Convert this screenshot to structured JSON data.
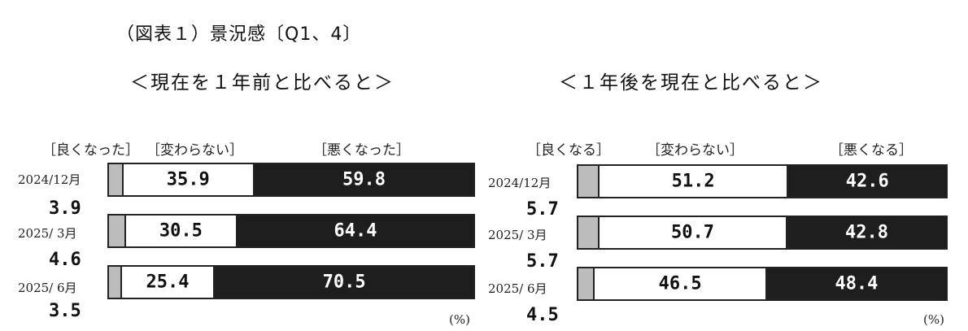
{
  "page_title": "（図表１）景況感〔Q1、4〕",
  "unit": "(%)",
  "colors": {
    "better": "#bcbcbc",
    "same": "#ffffff",
    "worse": "#1e1e1e",
    "outline": "#222222"
  },
  "chart_data": [
    {
      "type": "bar",
      "stacked": "horizontal-100",
      "title": "＜現在を１年前と比べると＞",
      "legend": [
        "［良くなった］",
        "［変わらない］",
        "［悪くなった］"
      ],
      "categories": [
        "2024/12月",
        "2025/ 3月",
        "2025/ 6月"
      ],
      "series": [
        {
          "name": "［良くなった］",
          "values": [
            3.9,
            4.6,
            3.5
          ]
        },
        {
          "name": "［変わらない］",
          "values": [
            35.9,
            30.5,
            25.4
          ]
        },
        {
          "name": "［悪くなった］",
          "values": [
            59.8,
            64.4,
            70.5
          ]
        }
      ],
      "labels": [
        {
          "better": "3.9",
          "same": "35.9",
          "worse": "59.8"
        },
        {
          "better": "4.6",
          "same": "30.5",
          "worse": "64.4"
        },
        {
          "better": "3.5",
          "same": "25.4",
          "worse": "70.5"
        }
      ],
      "unit": "(%)"
    },
    {
      "type": "bar",
      "stacked": "horizontal-100",
      "title": "＜１年後を現在と比べると＞",
      "legend": [
        "［良くなる］",
        "［変わらない］",
        "［悪くなる］"
      ],
      "categories": [
        "2024/12月",
        "2025/ 3月",
        "2025/ 6月"
      ],
      "series": [
        {
          "name": "［良くなる］",
          "values": [
            5.7,
            5.7,
            4.5
          ]
        },
        {
          "name": "［変わらない］",
          "values": [
            51.2,
            50.7,
            46.5
          ]
        },
        {
          "name": "［悪くなる］",
          "values": [
            42.6,
            42.8,
            48.4
          ]
        }
      ],
      "labels": [
        {
          "better": "5.7",
          "same": "51.2",
          "worse": "42.6"
        },
        {
          "better": "5.7",
          "same": "50.7",
          "worse": "42.8"
        },
        {
          "better": "4.5",
          "same": "46.5",
          "worse": "48.4"
        }
      ],
      "unit": "(%)"
    }
  ]
}
